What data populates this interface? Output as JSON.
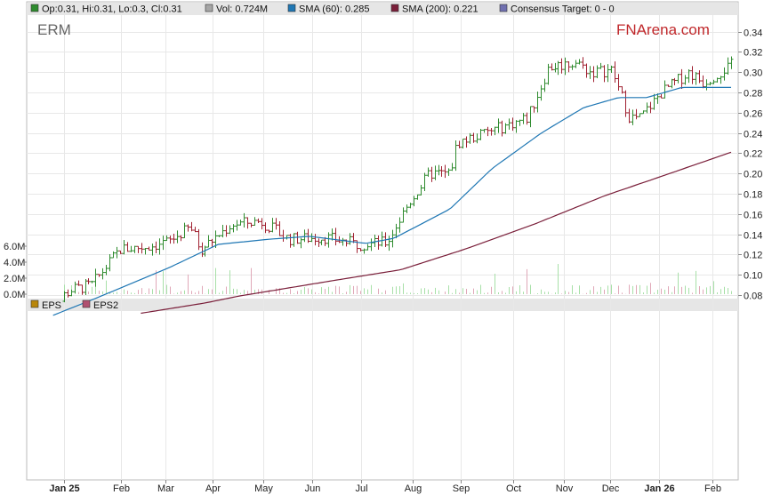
{
  "legend": [
    {
      "label": "Op:0.31, Hi:0.31, Lo:0.3, Cl:0.31",
      "color": "#2e8b2e"
    },
    {
      "label": "Vol: 0.724M",
      "color": "#a6a6a6"
    },
    {
      "label": "SMA (60): 0.285",
      "color": "#1f77b4"
    },
    {
      "label": "SMA (200): 0.221",
      "color": "#7a1f3a"
    },
    {
      "label": "Consensus Target: 0 - 0",
      "color": "#7070b0"
    }
  ],
  "ticker": "ERM",
  "brand": {
    "part1": "FN",
    "part2": "Arena",
    "part3": ".com",
    "color": "#c0282b"
  },
  "eps_legend": [
    {
      "label": "EPS",
      "color": "#b8860b"
    },
    {
      "label": "EPS2",
      "color": "#b05070"
    }
  ],
  "chart_data": {
    "type": "candlestick",
    "x_labels": [
      "Jan 25",
      "Feb",
      "Mar",
      "Apr",
      "May",
      "Jun",
      "Jul",
      "Aug",
      "Sep",
      "Oct",
      "Nov",
      "Dec",
      "Jan 26",
      "Feb"
    ],
    "bold_labels": [
      "Jan 25",
      "Jan 26"
    ],
    "y_ticks": [
      "0.34",
      "0.32",
      "0.30",
      "0.28",
      "0.26",
      "0.24",
      "0.22",
      "0.20",
      "0.18",
      "0.16",
      "0.14",
      "0.12",
      "0.10",
      "0.08"
    ],
    "ylim": [
      0.08,
      0.345
    ],
    "volume_ticks": [
      "6.0M",
      "4.0M",
      "2.0M",
      "0.0M"
    ],
    "volume_max": 7.0,
    "price_keyframes": [
      [
        0,
        0.05
      ],
      [
        0.03,
        0.07
      ],
      [
        0.06,
        0.085
      ],
      [
        0.09,
        0.09
      ],
      [
        0.13,
        0.125
      ],
      [
        0.17,
        0.128
      ],
      [
        0.2,
        0.133
      ],
      [
        0.23,
        0.147
      ],
      [
        0.245,
        0.125
      ],
      [
        0.29,
        0.15
      ],
      [
        0.33,
        0.153
      ],
      [
        0.37,
        0.135
      ],
      [
        0.42,
        0.137
      ],
      [
        0.47,
        0.13
      ],
      [
        0.51,
        0.132
      ],
      [
        0.54,
        0.17
      ],
      [
        0.57,
        0.2
      ],
      [
        0.6,
        0.2
      ],
      [
        0.61,
        0.23
      ],
      [
        0.67,
        0.245
      ],
      [
        0.71,
        0.255
      ],
      [
        0.74,
        0.305
      ],
      [
        0.78,
        0.31
      ],
      [
        0.8,
        0.3
      ],
      [
        0.83,
        0.302
      ],
      [
        0.855,
        0.255
      ],
      [
        0.87,
        0.255
      ],
      [
        0.9,
        0.28
      ],
      [
        0.94,
        0.3
      ],
      [
        0.96,
        0.29
      ],
      [
        1.0,
        0.307
      ]
    ],
    "sma60_keyframes": [
      [
        0.035,
        0.06
      ],
      [
        0.1,
        0.078
      ],
      [
        0.2,
        0.107
      ],
      [
        0.27,
        0.13
      ],
      [
        0.34,
        0.135
      ],
      [
        0.4,
        0.138
      ],
      [
        0.48,
        0.131
      ],
      [
        0.52,
        0.136
      ],
      [
        0.6,
        0.165
      ],
      [
        0.66,
        0.205
      ],
      [
        0.73,
        0.24
      ],
      [
        0.79,
        0.265
      ],
      [
        0.84,
        0.275
      ],
      [
        0.88,
        0.275
      ],
      [
        0.93,
        0.285
      ],
      [
        1.0,
        0.285
      ]
    ],
    "sma200_keyframes": [
      [
        0.16,
        0.062
      ],
      [
        0.25,
        0.072
      ],
      [
        0.3,
        0.079
      ],
      [
        0.37,
        0.087
      ],
      [
        0.44,
        0.095
      ],
      [
        0.53,
        0.105
      ],
      [
        0.62,
        0.125
      ],
      [
        0.72,
        0.15
      ],
      [
        0.82,
        0.178
      ],
      [
        0.9,
        0.197
      ],
      [
        1.0,
        0.221
      ]
    ]
  }
}
